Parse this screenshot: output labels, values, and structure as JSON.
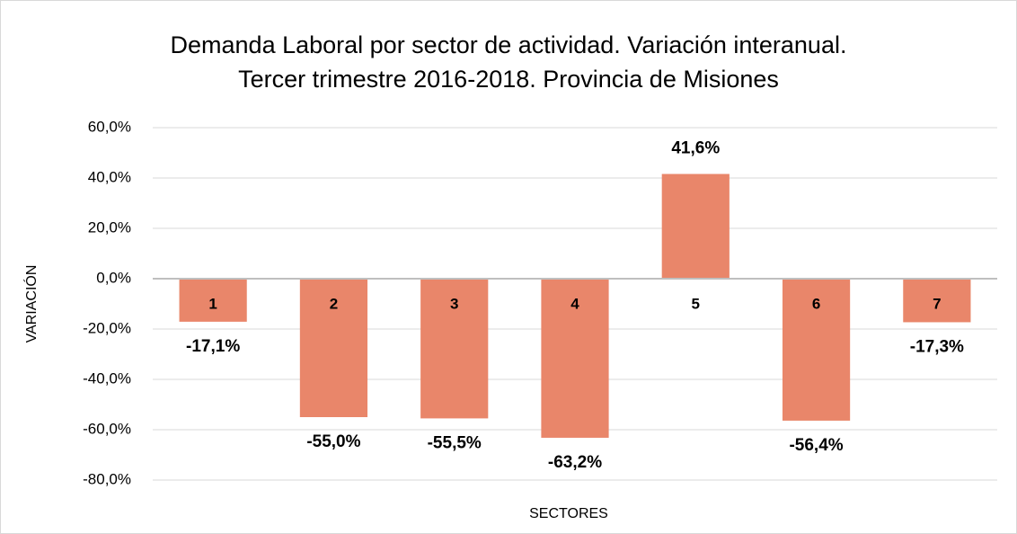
{
  "chart_data": {
    "type": "bar",
    "title": [
      "Demanda Laboral por sector de actividad. Variación interanual.",
      "Tercer trimestre 2016-2018. Provincia de Misiones"
    ],
    "xlabel": "SECTORES",
    "ylabel": "VARIACIÓN",
    "categories": [
      "1",
      "2",
      "3",
      "4",
      "5",
      "6",
      "7"
    ],
    "values": [
      -17.1,
      -55.0,
      -55.5,
      -63.2,
      41.6,
      -56.4,
      -17.3
    ],
    "value_labels": [
      "-17,1%",
      "-55,0%",
      "-55,5%",
      "-63,2%",
      "41,6%",
      "-56,4%",
      "-17,3%"
    ],
    "color": "#e9866a",
    "ylim": [
      -80,
      60
    ],
    "yticks": [
      {
        "value": -80,
        "label": "-80,0%"
      },
      {
        "value": -60,
        "label": "-60,0%"
      },
      {
        "value": -40,
        "label": "-40,0%"
      },
      {
        "value": -20,
        "label": "-20,0%"
      },
      {
        "value": 0,
        "label": "0,0%"
      },
      {
        "value": 20,
        "label": "20,0%"
      },
      {
        "value": 40,
        "label": "40,0%"
      },
      {
        "value": 60,
        "label": "60,0%"
      }
    ],
    "grid": true
  }
}
